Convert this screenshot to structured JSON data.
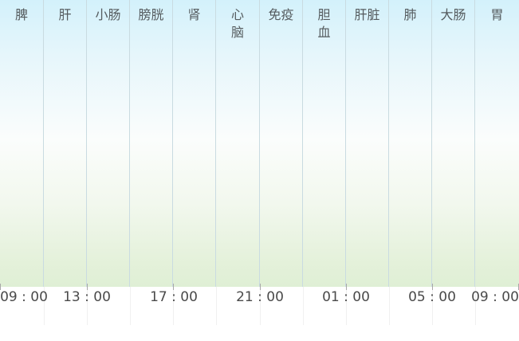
{
  "organs": [
    "脾",
    "肝",
    "小肠",
    "膀胱",
    "肾",
    "心\n脑",
    "免疫",
    "胆\n血",
    "肝脏",
    "肺",
    "大肠",
    "胃"
  ],
  "times": [
    "09 : 00",
    "13 : 00",
    "17 : 00",
    "21 : 00",
    "01 : 00",
    "05 : 00",
    "09 : 00"
  ]
}
